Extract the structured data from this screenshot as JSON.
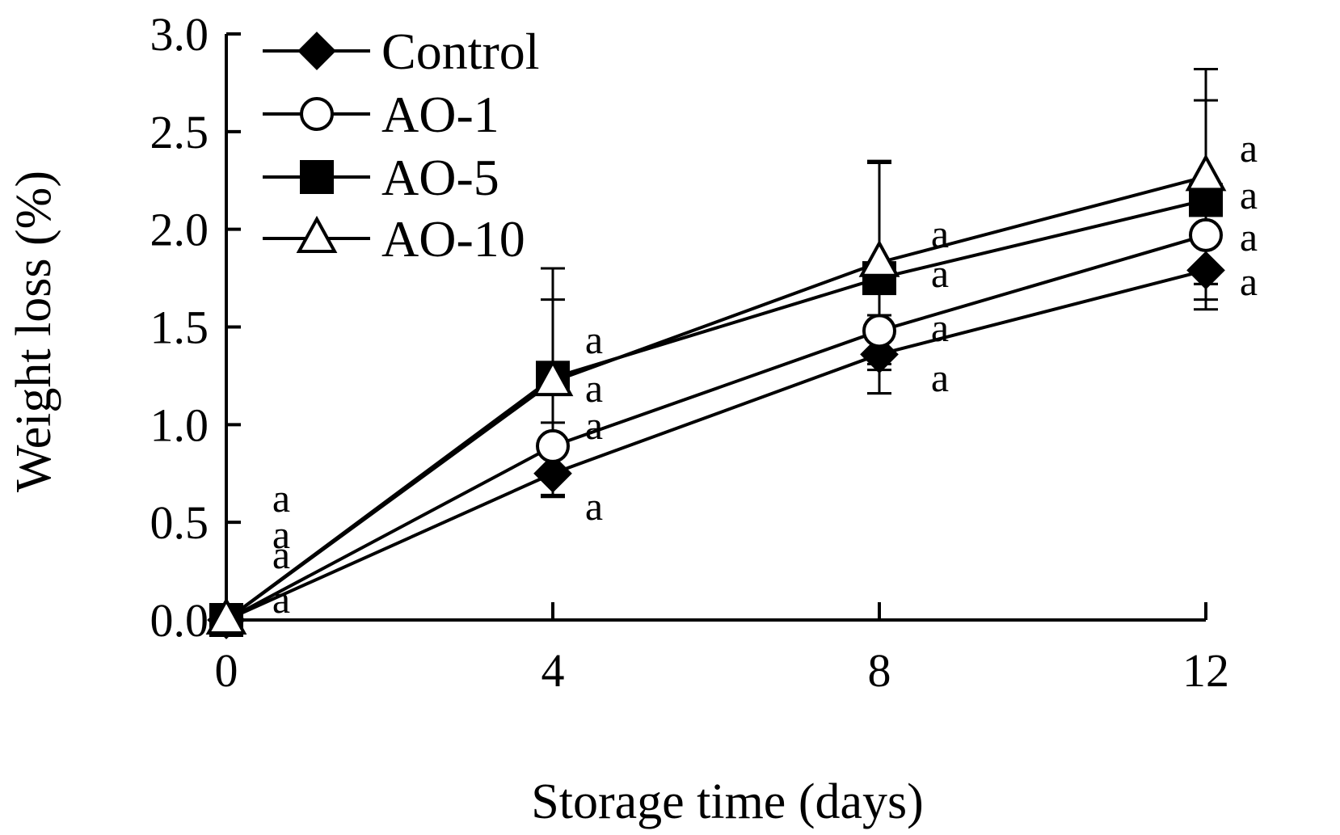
{
  "chart_data": {
    "type": "line",
    "title": "",
    "xlabel": "Storage time (days)",
    "ylabel": "Weight loss (%)",
    "x": [
      0,
      4,
      8,
      12
    ],
    "x_ticks": [
      "0",
      "4",
      "8",
      "12"
    ],
    "y_ticks": [
      "0.0",
      "0.5",
      "1.0",
      "1.5",
      "2.0",
      "2.5",
      "3.0"
    ],
    "xlim": [
      0,
      12
    ],
    "ylim": [
      0,
      3.0
    ],
    "grid": false,
    "legend_position": "top-left",
    "series": [
      {
        "name": "Control",
        "marker": "diamond-filled",
        "values": [
          0,
          0.75,
          1.36,
          1.79
        ],
        "error": [
          0,
          0.12,
          0.2,
          0.2
        ],
        "labels": [
          "a",
          "a",
          "a",
          "a"
        ]
      },
      {
        "name": "AO-1",
        "marker": "circle-open",
        "values": [
          0,
          0.89,
          1.48,
          1.97
        ],
        "error": [
          0,
          0.12,
          0.2,
          0.25
        ],
        "labels": [
          "a",
          "a",
          "a",
          "a"
        ]
      },
      {
        "name": "AO-5",
        "marker": "square-filled",
        "values": [
          0,
          1.24,
          1.75,
          2.15
        ],
        "error": [
          0,
          0.4,
          0.59,
          0.51
        ],
        "labels": [
          "a",
          "a",
          "a",
          "a"
        ]
      },
      {
        "name": "AO-10",
        "marker": "triangle-open",
        "values": [
          0,
          1.22,
          1.83,
          2.27
        ],
        "error": [
          0,
          0.58,
          0.52,
          0.55
        ],
        "labels": [
          "a",
          "a",
          "a",
          "a"
        ]
      }
    ]
  }
}
